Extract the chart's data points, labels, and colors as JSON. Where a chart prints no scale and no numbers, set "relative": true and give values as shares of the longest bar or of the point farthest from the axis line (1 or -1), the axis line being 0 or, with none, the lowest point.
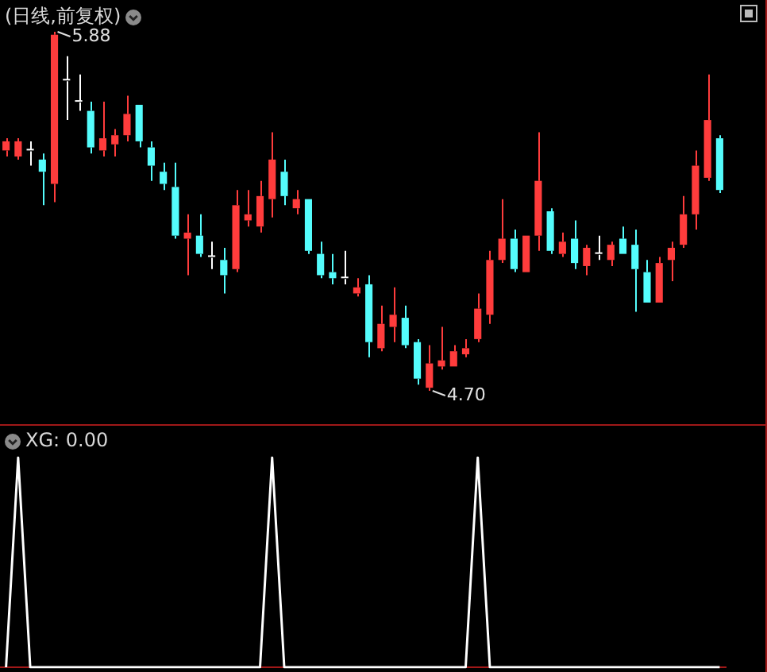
{
  "chart_data": [
    {
      "type": "candlestick",
      "title": "(日线,前复权)",
      "categories": [
        null,
        null,
        null,
        null,
        null,
        null,
        null,
        null,
        null,
        null,
        null,
        null,
        null,
        null,
        null,
        null,
        null,
        null,
        null,
        null,
        null,
        null,
        null,
        null,
        null,
        null,
        null,
        null,
        null,
        null,
        null,
        null,
        null,
        null,
        null,
        null,
        null,
        null,
        null,
        null,
        null,
        null,
        null,
        null,
        null,
        null,
        null,
        null,
        null,
        null,
        null,
        null,
        null,
        null,
        null,
        null,
        null,
        null,
        null,
        null
      ],
      "ohlc": [
        [
          5.49,
          5.53,
          5.47,
          5.52
        ],
        [
          5.47,
          5.53,
          5.46,
          5.52
        ],
        [
          5.49,
          5.52,
          5.44,
          5.49
        ],
        [
          5.46,
          5.48,
          5.31,
          5.42
        ],
        [
          5.38,
          5.88,
          5.32,
          5.87
        ],
        [
          5.72,
          5.8,
          5.59,
          5.72
        ],
        [
          5.65,
          5.74,
          5.62,
          5.65
        ],
        [
          5.62,
          5.65,
          5.48,
          5.5
        ],
        [
          5.49,
          5.65,
          5.47,
          5.53
        ],
        [
          5.51,
          5.56,
          5.47,
          5.54
        ],
        [
          5.54,
          5.67,
          5.52,
          5.61
        ],
        [
          5.64,
          5.64,
          5.5,
          5.52
        ],
        [
          5.5,
          5.52,
          5.39,
          5.44
        ],
        [
          5.42,
          5.45,
          5.36,
          5.38
        ],
        [
          5.37,
          5.45,
          5.2,
          5.21
        ],
        [
          5.2,
          5.28,
          5.08,
          5.22
        ],
        [
          5.21,
          5.28,
          5.14,
          5.15
        ],
        [
          5.14,
          5.19,
          5.1,
          5.14
        ],
        [
          5.13,
          5.17,
          5.02,
          5.08
        ],
        [
          5.1,
          5.36,
          5.09,
          5.31
        ],
        [
          5.26,
          5.36,
          5.24,
          5.28
        ],
        [
          5.24,
          5.39,
          5.22,
          5.34
        ],
        [
          5.33,
          5.55,
          5.27,
          5.46
        ],
        [
          5.42,
          5.46,
          5.31,
          5.34
        ],
        [
          5.3,
          5.36,
          5.28,
          5.33
        ],
        [
          5.33,
          5.33,
          5.15,
          5.16
        ],
        [
          5.15,
          5.19,
          5.07,
          5.08
        ],
        [
          5.09,
          5.15,
          5.05,
          5.07
        ],
        [
          5.07,
          5.16,
          5.05,
          5.07
        ],
        [
          5.02,
          5.07,
          5.01,
          5.04
        ],
        [
          5.05,
          5.08,
          4.81,
          4.86
        ],
        [
          4.84,
          4.98,
          4.83,
          4.92
        ],
        [
          4.91,
          5.04,
          4.86,
          4.95
        ],
        [
          4.94,
          4.98,
          4.84,
          4.85
        ],
        [
          4.86,
          4.87,
          4.72,
          4.74
        ],
        [
          4.71,
          4.85,
          4.7,
          4.79
        ],
        [
          4.78,
          4.91,
          4.77,
          4.8
        ],
        [
          4.78,
          4.85,
          4.78,
          4.83
        ],
        [
          4.82,
          4.87,
          4.81,
          4.84
        ],
        [
          4.87,
          5.02,
          4.86,
          4.97
        ],
        [
          4.95,
          5.16,
          4.92,
          5.13
        ],
        [
          5.13,
          5.33,
          5.12,
          5.2
        ],
        [
          5.2,
          5.23,
          5.09,
          5.1
        ],
        [
          5.09,
          5.21,
          5.09,
          5.21
        ],
        [
          5.21,
          5.55,
          5.16,
          5.39
        ],
        [
          5.29,
          5.3,
          5.15,
          5.16
        ],
        [
          5.15,
          5.22,
          5.14,
          5.19
        ],
        [
          5.2,
          5.26,
          5.1,
          5.12
        ],
        [
          5.11,
          5.18,
          5.08,
          5.17
        ],
        [
          5.15,
          5.21,
          5.13,
          5.15
        ],
        [
          5.13,
          5.19,
          5.11,
          5.18
        ],
        [
          5.2,
          5.24,
          5.15,
          5.15
        ],
        [
          5.18,
          5.23,
          4.96,
          5.1
        ],
        [
          5.09,
          5.13,
          4.99,
          4.99
        ],
        [
          4.99,
          5.14,
          4.99,
          5.12
        ],
        [
          5.13,
          5.19,
          5.06,
          5.17
        ],
        [
          5.18,
          5.34,
          5.17,
          5.28
        ],
        [
          5.28,
          5.49,
          5.23,
          5.44
        ],
        [
          5.4,
          5.74,
          5.39,
          5.59
        ],
        [
          5.53,
          5.54,
          5.35,
          5.36
        ]
      ],
      "colors": [
        "#ff3c3c",
        "#ff3c3c",
        "#ffffff",
        "#54fcfc",
        "#ff3c3c",
        "#ffffff",
        "#ffffff",
        "#54fcfc",
        "#ff3c3c",
        "#ff3c3c",
        "#ff3c3c",
        "#54fcfc",
        "#54fcfc",
        "#54fcfc",
        "#54fcfc",
        "#ff3c3c",
        "#54fcfc",
        "#ffffff",
        "#54fcfc",
        "#ff3c3c",
        "#ff3c3c",
        "#ff3c3c",
        "#ff3c3c",
        "#54fcfc",
        "#ff3c3c",
        "#54fcfc",
        "#54fcfc",
        "#54fcfc",
        "#ffffff",
        "#ff3c3c",
        "#54fcfc",
        "#ff3c3c",
        "#ff3c3c",
        "#54fcfc",
        "#54fcfc",
        "#ff3c3c",
        "#ff3c3c",
        "#ff3c3c",
        "#ff3c3c",
        "#ff3c3c",
        "#ff3c3c",
        "#ff3c3c",
        "#54fcfc",
        "#ff3c3c",
        "#ff3c3c",
        "#54fcfc",
        "#ff3c3c",
        "#54fcfc",
        "#ff3c3c",
        "#ffffff",
        "#ff3c3c",
        "#54fcfc",
        "#54fcfc",
        "#54fcfc",
        "#ff3c3c",
        "#ff3c3c",
        "#ff3c3c",
        "#ff3c3c",
        "#ff3c3c",
        "#54fcfc"
      ],
      "annotations": [
        "5.88",
        "4.70"
      ]
    },
    {
      "type": "line",
      "title": "XG: 0.00",
      "relative": true,
      "marker": "none",
      "categories": [
        null,
        null,
        null,
        null,
        null,
        null,
        null,
        null,
        null,
        null,
        null,
        null,
        null,
        null,
        null,
        null,
        null,
        null,
        null,
        null,
        null,
        null,
        null,
        null,
        null,
        null,
        null,
        null,
        null,
        null,
        null,
        null,
        null,
        null,
        null,
        null,
        null,
        null,
        null,
        null,
        null,
        null,
        null,
        null,
        null,
        null,
        null,
        null,
        null,
        null,
        null,
        null,
        null,
        null,
        null,
        null,
        null,
        null,
        null,
        null
      ],
      "series": [
        {
          "color": "#ffffff",
          "values": [
            0,
            1,
            0,
            0,
            0,
            0,
            0,
            0,
            0,
            0,
            0,
            0,
            0,
            0,
            0,
            0,
            0,
            0,
            0,
            0,
            0,
            0,
            1,
            0,
            0,
            0,
            0,
            0,
            0,
            0,
            0,
            0,
            0,
            0,
            0,
            0,
            0,
            0,
            0,
            1,
            0,
            0,
            0,
            0,
            0,
            0,
            0,
            0,
            0,
            0,
            0,
            0,
            0,
            0,
            0,
            0,
            0,
            0,
            0,
            0
          ]
        }
      ]
    }
  ]
}
